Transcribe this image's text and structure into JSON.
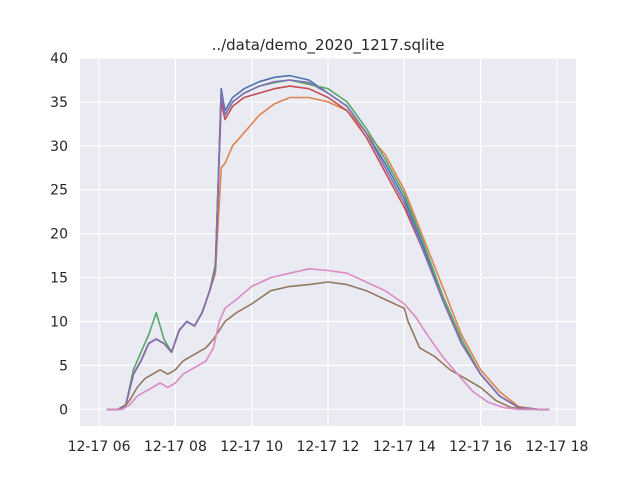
{
  "chart_data": {
    "type": "line",
    "title": "../data/demo_2020_1217.sqlite",
    "xlabel": "",
    "ylabel": "",
    "xlim": [
      5.5,
      18.5
    ],
    "ylim": [
      -1.9,
      40.0
    ],
    "grid": true,
    "legend": "none",
    "x_ticks": [
      {
        "value": 6,
        "label": "12-17 06"
      },
      {
        "value": 8,
        "label": "12-17 08"
      },
      {
        "value": 10,
        "label": "12-17 10"
      },
      {
        "value": 12,
        "label": "12-17 12"
      },
      {
        "value": 14,
        "label": "12-17 14"
      },
      {
        "value": 16,
        "label": "12-17 16"
      },
      {
        "value": 18,
        "label": "12-17 18"
      }
    ],
    "y_ticks": [
      {
        "value": 0,
        "label": "0"
      },
      {
        "value": 5,
        "label": "5"
      },
      {
        "value": 10,
        "label": "10"
      },
      {
        "value": 15,
        "label": "15"
      },
      {
        "value": 20,
        "label": "20"
      },
      {
        "value": 25,
        "label": "25"
      },
      {
        "value": 30,
        "label": "30"
      },
      {
        "value": 35,
        "label": "35"
      },
      {
        "value": 40,
        "label": "40"
      }
    ],
    "series": [
      {
        "color": "#4c72b0",
        "x": [
          6.2,
          6.5,
          6.7,
          6.9,
          7.1,
          7.3,
          7.5,
          7.7,
          7.9,
          8.1,
          8.3,
          8.5,
          8.7,
          8.9,
          9.05,
          9.2,
          9.3,
          9.5,
          9.8,
          10.2,
          10.6,
          11.0,
          11.5,
          12.0,
          12.5,
          13.0,
          13.5,
          14.0,
          14.5,
          15.0,
          15.5,
          16.0,
          16.5,
          17.0,
          17.5,
          17.8
        ],
        "y": [
          0,
          0,
          0.5,
          4,
          5.5,
          7.5,
          8,
          7.5,
          6.5,
          9,
          10,
          9.5,
          11,
          13.5,
          16,
          36.5,
          34,
          35.5,
          36.5,
          37.3,
          37.8,
          38,
          37.5,
          36,
          34.5,
          31.5,
          28,
          24,
          18.5,
          12.5,
          7.5,
          4,
          1.5,
          0.2,
          0,
          0
        ]
      },
      {
        "color": "#dd8452",
        "x": [
          6.2,
          6.5,
          6.7,
          6.9,
          7.1,
          7.3,
          7.5,
          7.7,
          7.9,
          8.1,
          8.3,
          8.5,
          8.7,
          8.9,
          9.05,
          9.2,
          9.3,
          9.5,
          9.8,
          10.2,
          10.6,
          11.0,
          11.5,
          12.0,
          12.5,
          13.0,
          13.5,
          14.0,
          14.5,
          15.0,
          15.5,
          16.0,
          16.5,
          17.0,
          17.5,
          17.8
        ],
        "y": [
          0,
          0,
          0.5,
          4,
          5.5,
          7.5,
          8,
          7.5,
          6.5,
          9,
          10,
          9.5,
          11,
          13.5,
          15.5,
          27.5,
          28,
          30,
          31.5,
          33.5,
          34.8,
          35.5,
          35.5,
          35,
          34,
          31.5,
          29,
          25,
          19.5,
          14,
          8.5,
          4.5,
          2,
          0.3,
          0,
          0
        ]
      },
      {
        "color": "#55a868",
        "x": [
          6.2,
          6.5,
          6.7,
          6.9,
          7.1,
          7.3,
          7.5,
          7.7,
          7.9,
          8.1,
          8.3,
          8.5,
          8.7,
          8.9,
          9.05,
          9.2,
          9.3,
          9.5,
          9.8,
          10.2,
          10.6,
          11.0,
          11.5,
          12.0,
          12.5,
          13.0,
          13.5,
          14.0,
          14.5,
          15.0,
          15.5,
          16.0,
          16.5,
          17.0,
          17.5,
          17.8
        ],
        "y": [
          0,
          0,
          0.5,
          4.5,
          6.5,
          8.5,
          11,
          8,
          6.5,
          9,
          10,
          9.5,
          11,
          13.5,
          16.5,
          35.5,
          33.5,
          35,
          36,
          36.8,
          37.2,
          37.5,
          37,
          36.5,
          35,
          32,
          28.5,
          24.5,
          19,
          13,
          8,
          4,
          1.5,
          0.2,
          0,
          0
        ]
      },
      {
        "color": "#c44e52",
        "x": [
          6.2,
          6.5,
          6.7,
          6.9,
          7.1,
          7.3,
          7.5,
          7.7,
          7.9,
          8.1,
          8.3,
          8.5,
          8.7,
          8.9,
          9.05,
          9.2,
          9.3,
          9.5,
          9.8,
          10.2,
          10.6,
          11.0,
          11.5,
          12.0,
          12.5,
          13.0,
          13.5,
          14.0,
          14.5,
          15.0,
          15.5,
          16.0,
          16.5,
          17.0,
          17.5,
          17.8
        ],
        "y": [
          0,
          0,
          0.5,
          4,
          5.5,
          7.5,
          8,
          7.5,
          6.5,
          9,
          10,
          9.5,
          11,
          13.5,
          16,
          35,
          33,
          34.5,
          35.5,
          36,
          36.5,
          36.8,
          36.5,
          35.5,
          34,
          31,
          27,
          23,
          18,
          12.5,
          7.5,
          4,
          1.5,
          0.2,
          0,
          0
        ]
      },
      {
        "color": "#8172b3",
        "x": [
          6.2,
          6.5,
          6.7,
          6.9,
          7.1,
          7.3,
          7.5,
          7.7,
          7.9,
          8.1,
          8.3,
          8.5,
          8.7,
          8.9,
          9.05,
          9.2,
          9.3,
          9.5,
          9.8,
          10.2,
          10.6,
          11.0,
          11.5,
          12.0,
          12.5,
          13.0,
          13.5,
          14.0,
          14.5,
          15.0,
          15.5,
          16.0,
          16.5,
          17.0,
          17.5,
          17.8
        ],
        "y": [
          0,
          0,
          0.5,
          4,
          5.5,
          7.5,
          8,
          7.5,
          6.5,
          9,
          10,
          9.5,
          11,
          13.5,
          16,
          36,
          33.5,
          35,
          36,
          36.8,
          37.3,
          37.5,
          37.2,
          36,
          34.5,
          31.5,
          27.5,
          23.5,
          18,
          12.5,
          7.5,
          4,
          1.5,
          0.2,
          0,
          0
        ]
      },
      {
        "color": "#937860",
        "x": [
          6.2,
          6.6,
          6.8,
          7.0,
          7.2,
          7.4,
          7.6,
          7.8,
          8.0,
          8.2,
          8.4,
          8.6,
          8.8,
          9.0,
          9.15,
          9.3,
          9.6,
          10.0,
          10.5,
          11.0,
          11.5,
          12.0,
          12.5,
          13.0,
          13.5,
          14.0,
          14.1,
          14.4,
          14.8,
          15.2,
          15.6,
          16.0,
          16.4,
          16.8,
          17.2,
          17.8
        ],
        "y": [
          0,
          0,
          1,
          2.5,
          3.5,
          4,
          4.5,
          4,
          4.5,
          5.5,
          6,
          6.5,
          7,
          8,
          9,
          10,
          11,
          12,
          13.5,
          14,
          14.2,
          14.5,
          14.2,
          13.5,
          12.5,
          11.5,
          10,
          7,
          6,
          4.5,
          3.5,
          2.5,
          1,
          0.2,
          0,
          0
        ]
      },
      {
        "color": "#da8bc3",
        "x": [
          6.2,
          6.6,
          6.8,
          7.0,
          7.2,
          7.4,
          7.6,
          7.8,
          8.0,
          8.2,
          8.4,
          8.6,
          8.8,
          9.0,
          9.15,
          9.3,
          9.6,
          10.0,
          10.5,
          11.0,
          11.5,
          12.0,
          12.5,
          13.0,
          13.5,
          14.0,
          14.3,
          14.6,
          15.0,
          15.4,
          15.8,
          16.2,
          16.6,
          17.0,
          17.4,
          17.8
        ],
        "y": [
          0,
          0,
          0.5,
          1.5,
          2,
          2.5,
          3,
          2.5,
          3,
          4,
          4.5,
          5,
          5.5,
          7,
          10,
          11.5,
          12.5,
          14,
          15,
          15.5,
          16,
          15.8,
          15.5,
          14.5,
          13.5,
          12,
          10.5,
          8.5,
          6,
          4,
          2,
          0.8,
          0.2,
          0,
          0,
          0
        ]
      }
    ]
  }
}
